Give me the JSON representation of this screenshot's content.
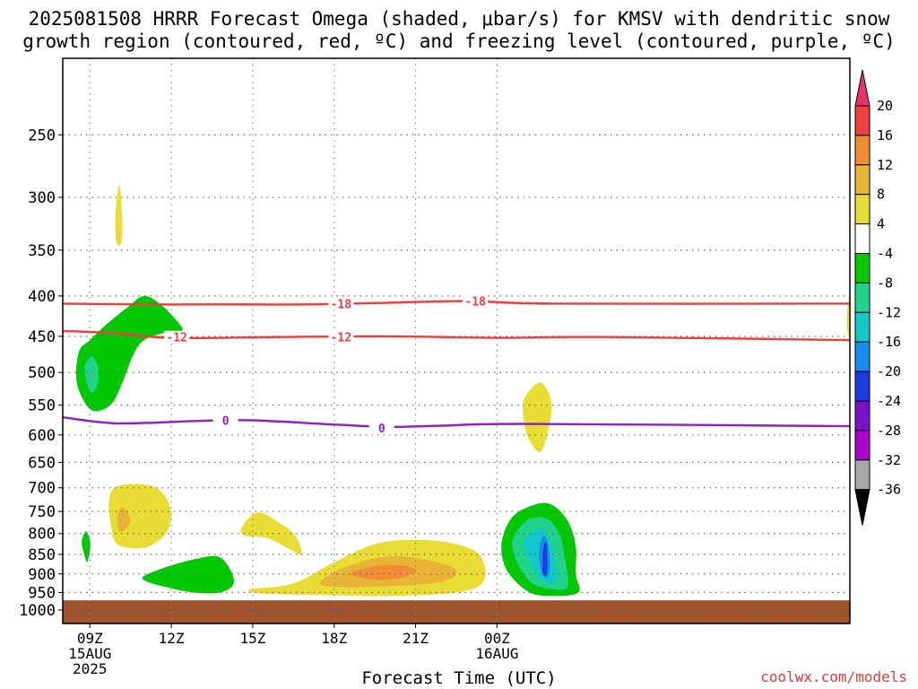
{
  "title_line1": "2025081508 HRRR Forecast Omega (shaded, μbar/s) for KMSV with dendritic snow",
  "title_line2": "growth region (contoured, red, ºC) and freezing level (contoured, purple, ºC)",
  "credit": "coolwx.com/models",
  "chart_data": {
    "type": "contour",
    "xlabel": "Forecast Time (UTC)",
    "ylabel": "",
    "x_unit": "hours since 2025-08-15 08Z",
    "xlim": [
      0,
      29
    ],
    "y_axis": "pressure (hPa), log scale, inverted",
    "ylim": [
      1040,
      200
    ],
    "y_ticks": [
      250,
      300,
      350,
      400,
      450,
      500,
      550,
      600,
      650,
      700,
      750,
      800,
      850,
      900,
      950,
      1000
    ],
    "x_ticks": [
      {
        "x": 1,
        "label": [
          "09Z",
          "15AUG",
          "2025"
        ]
      },
      {
        "x": 4,
        "label": [
          "12Z"
        ]
      },
      {
        "x": 7,
        "label": [
          "15Z"
        ]
      },
      {
        "x": 10,
        "label": [
          "18Z"
        ]
      },
      {
        "x": 13,
        "label": [
          "21Z"
        ]
      },
      {
        "x": 16,
        "label": [
          "00Z",
          "16AUG"
        ]
      }
    ],
    "colorbar": {
      "labels": [
        "20",
        "16",
        "12",
        "8",
        "4",
        "-4",
        "-8",
        "-12",
        "-16",
        "-20",
        "-24",
        "-28",
        "-32",
        "-36"
      ],
      "colors": [
        "#e8336a",
        "#f04040",
        "#f08c34",
        "#e8b435",
        "#e8dc35",
        "#ffffff",
        "#00c800",
        "#1fd48a",
        "#10c8c8",
        "#1a8cf0",
        "#1a3ce0",
        "#7a10c8",
        "#a800c8",
        "#a8a8a8",
        "#000000"
      ]
    },
    "contours": [
      {
        "name": "-18",
        "color": "#f03c3c",
        "points": [
          [
            0,
            409
          ],
          [
            3,
            410
          ],
          [
            6,
            410
          ],
          [
            9,
            410
          ],
          [
            12,
            408
          ],
          [
            15,
            406
          ],
          [
            18,
            409
          ],
          [
            29,
            409
          ]
        ],
        "labels": [
          [
            10.25,
            409
          ],
          [
            15.2,
            406
          ]
        ]
      },
      {
        "name": "-12",
        "color": "#f03c3c",
        "points": [
          [
            0,
            443
          ],
          [
            2,
            446
          ],
          [
            4,
            452
          ],
          [
            8,
            451
          ],
          [
            12,
            450
          ],
          [
            16,
            452
          ],
          [
            20,
            451
          ],
          [
            29,
            455
          ]
        ],
        "labels": [
          [
            4.2,
            451
          ],
          [
            10.25,
            451
          ]
        ]
      },
      {
        "name": "0",
        "color": "#9020c0",
        "points": [
          [
            0,
            570
          ],
          [
            2,
            580
          ],
          [
            5,
            576
          ],
          [
            7,
            575
          ],
          [
            10,
            582
          ],
          [
            12,
            586
          ],
          [
            14,
            584
          ],
          [
            17,
            581
          ],
          [
            29,
            585
          ]
        ],
        "labels": [
          [
            6.0,
            575
          ],
          [
            11.75,
            588
          ]
        ]
      }
    ],
    "shaded_regions": [
      {
        "value": "-4..-8",
        "color": "#00c800",
        "points": [
          [
            0.6,
            470
          ],
          [
            1.0,
            455
          ],
          [
            1.6,
            435
          ],
          [
            2.4,
            413
          ],
          [
            3.0,
            400
          ],
          [
            3.6,
            410
          ],
          [
            4.2,
            430
          ],
          [
            4.4,
            443
          ],
          [
            3.8,
            445
          ],
          [
            3.0,
            455
          ],
          [
            2.6,
            475
          ],
          [
            2.2,
            515
          ],
          [
            1.8,
            548
          ],
          [
            1.2,
            560
          ],
          [
            0.8,
            545
          ],
          [
            0.5,
            510
          ]
        ]
      },
      {
        "value": "-8..-12",
        "color": "#1fd48a",
        "points": [
          [
            0.9,
            483
          ],
          [
            1.1,
            478
          ],
          [
            1.3,
            492
          ],
          [
            1.3,
            515
          ],
          [
            1.1,
            530
          ],
          [
            0.9,
            518
          ],
          [
            0.8,
            495
          ]
        ]
      },
      {
        "value": "4..8",
        "color": "#e8dc35",
        "points": [
          [
            1.95,
            310
          ],
          [
            2.1,
            290
          ],
          [
            2.2,
            330
          ],
          [
            2.1,
            345
          ],
          [
            1.95,
            338
          ]
        ]
      },
      {
        "value": "-4..-8",
        "color": "#00c800",
        "points": [
          [
            0.7,
            820
          ],
          [
            0.85,
            795
          ],
          [
            1.0,
            815
          ],
          [
            1.0,
            840
          ],
          [
            0.9,
            870
          ],
          [
            0.8,
            852
          ]
        ]
      },
      {
        "value": "4..8",
        "color": "#e8dc35",
        "points": [
          [
            1.7,
            730
          ],
          [
            2.0,
            697
          ],
          [
            3.2,
            695
          ],
          [
            3.8,
            720
          ],
          [
            4.0,
            760
          ],
          [
            3.8,
            800
          ],
          [
            3.2,
            830
          ],
          [
            2.6,
            835
          ],
          [
            2.0,
            825
          ],
          [
            1.8,
            790
          ]
        ]
      },
      {
        "value": "8..12",
        "color": "#e8b435",
        "points": [
          [
            2.0,
            765
          ],
          [
            2.2,
            740
          ],
          [
            2.5,
            770
          ],
          [
            2.2,
            795
          ],
          [
            2.05,
            790
          ]
        ]
      },
      {
        "value": "4..8",
        "color": "#e8dc35",
        "points": [
          [
            6.6,
            785
          ],
          [
            7.2,
            752
          ],
          [
            8.1,
            780
          ],
          [
            8.6,
            808
          ],
          [
            8.8,
            850
          ],
          [
            8.3,
            835
          ],
          [
            7.5,
            810
          ],
          [
            6.7,
            805
          ]
        ]
      },
      {
        "value": "-4..-8",
        "color": "#00c800",
        "points": [
          [
            3.0,
            905
          ],
          [
            4.0,
            878
          ],
          [
            5.0,
            860
          ],
          [
            5.7,
            855
          ],
          [
            6.1,
            880
          ],
          [
            6.3,
            925
          ],
          [
            5.8,
            950
          ],
          [
            4.8,
            950
          ],
          [
            3.8,
            935
          ],
          [
            3.1,
            920
          ]
        ]
      },
      {
        "value": "4..8",
        "color": "#e8dc35",
        "points": [
          [
            7.0,
            940
          ],
          [
            8.5,
            925
          ],
          [
            10.0,
            870
          ],
          [
            11.5,
            825
          ],
          [
            13.0,
            815
          ],
          [
            14.5,
            825
          ],
          [
            15.4,
            855
          ],
          [
            15.5,
            920
          ],
          [
            14.5,
            950
          ],
          [
            12.0,
            960
          ],
          [
            10.0,
            958
          ],
          [
            8.0,
            955
          ],
          [
            7.0,
            950
          ]
        ]
      },
      {
        "value": "8..12",
        "color": "#e8b435",
        "points": [
          [
            9.5,
            920
          ],
          [
            10.5,
            880
          ],
          [
            12.0,
            855
          ],
          [
            13.5,
            865
          ],
          [
            14.5,
            890
          ],
          [
            14.0,
            920
          ],
          [
            12.0,
            933
          ],
          [
            10.0,
            935
          ]
        ]
      },
      {
        "value": "12..16",
        "color": "#f08c34",
        "points": [
          [
            10.6,
            900
          ],
          [
            11.5,
            880
          ],
          [
            12.5,
            878
          ],
          [
            13.0,
            890
          ],
          [
            12.5,
            910
          ],
          [
            11.5,
            915
          ]
        ]
      },
      {
        "value": "4..8",
        "color": "#e8dc35",
        "points": [
          [
            17.0,
            540
          ],
          [
            17.6,
            515
          ],
          [
            18.0,
            545
          ],
          [
            17.9,
            590
          ],
          [
            17.6,
            630
          ],
          [
            17.2,
            610
          ],
          [
            17.0,
            580
          ]
        ]
      },
      {
        "value": "4..8",
        "color": "#e8dc35",
        "points": [
          [
            28.9,
            420
          ],
          [
            29.0,
            395
          ],
          [
            29.0,
            450
          ],
          [
            28.9,
            440
          ]
        ]
      },
      {
        "value": "-4..-8",
        "color": "#00c800",
        "points": [
          [
            16.2,
            810
          ],
          [
            16.6,
            760
          ],
          [
            17.4,
            735
          ],
          [
            18.0,
            735
          ],
          [
            18.6,
            770
          ],
          [
            18.9,
            830
          ],
          [
            18.9,
            900
          ],
          [
            19.0,
            950
          ],
          [
            18.0,
            960
          ],
          [
            17.2,
            950
          ],
          [
            16.5,
            905
          ],
          [
            16.2,
            860
          ]
        ]
      },
      {
        "value": "-8..-12",
        "color": "#1fd48a",
        "points": [
          [
            16.6,
            810
          ],
          [
            17.1,
            770
          ],
          [
            17.8,
            765
          ],
          [
            18.3,
            800
          ],
          [
            18.5,
            860
          ],
          [
            18.6,
            935
          ],
          [
            18.0,
            940
          ],
          [
            17.3,
            925
          ],
          [
            16.8,
            880
          ],
          [
            16.6,
            840
          ]
        ]
      },
      {
        "value": "-12..-16",
        "color": "#10c8c8",
        "points": [
          [
            17.0,
            815
          ],
          [
            17.5,
            790
          ],
          [
            17.9,
            805
          ],
          [
            18.1,
            860
          ],
          [
            18.2,
            915
          ],
          [
            17.8,
            925
          ],
          [
            17.4,
            895
          ],
          [
            17.1,
            850
          ]
        ]
      },
      {
        "value": "-16..-20",
        "color": "#1a8cf0",
        "points": [
          [
            17.6,
            820
          ],
          [
            17.75,
            805
          ],
          [
            17.9,
            830
          ],
          [
            17.95,
            880
          ],
          [
            17.85,
            910
          ],
          [
            17.65,
            895
          ],
          [
            17.55,
            860
          ]
        ]
      },
      {
        "value": "-20..-24",
        "color": "#1a3ce0",
        "points": [
          [
            17.72,
            830
          ],
          [
            17.82,
            822
          ],
          [
            17.86,
            860
          ],
          [
            17.83,
            900
          ],
          [
            17.7,
            900
          ],
          [
            17.68,
            860
          ]
        ]
      }
    ],
    "terrain": {
      "color": "#a0522d",
      "surface_pressure": 972
    }
  }
}
